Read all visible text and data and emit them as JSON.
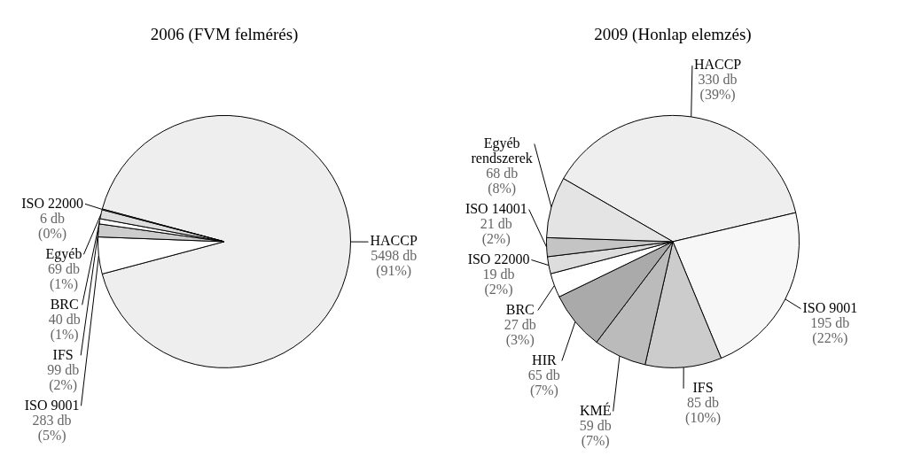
{
  "chart_data": [
    {
      "type": "pie",
      "title": "2006 (FVM felmérés)",
      "categories": [
        "HACCP",
        "ISO 9001",
        "IFS",
        "BRC",
        "Egyéb",
        "ISO 22000"
      ],
      "values": [
        5498,
        283,
        99,
        40,
        69,
        6
      ],
      "value_labels": [
        "5498 db (91%)",
        "283 db (5%)",
        "99 db (2%)",
        "40 db (1%)",
        "69 db (1%)",
        "6 db (0%)"
      ],
      "colors": [
        "#eeeeee",
        "#ffffff",
        "#cccccc",
        "#ffffff",
        "#dddddd",
        "#ffffff"
      ]
    },
    {
      "type": "pie",
      "title": "2009 (Honlap elemzés)",
      "categories": [
        "HACCP",
        "ISO 9001",
        "IFS",
        "KMÉ",
        "HIR",
        "BRC",
        "ISO 22000",
        "ISO 14001",
        "Egyéb rendszerek"
      ],
      "values": [
        330,
        195,
        85,
        59,
        65,
        27,
        19,
        21,
        68
      ],
      "value_labels": [
        "330 db (39%)",
        "195 db (22%)",
        "85 db (10%)",
        "59 db (7%)",
        "65 db (7%)",
        "27 db (3%)",
        "19 db (2%)",
        "21 db (2%)",
        "68 db (8%)"
      ],
      "colors": [
        "#eeeeee",
        "#f7f7f7",
        "#cccccc",
        "#bbbbbb",
        "#aaaaaa",
        "#ffffff",
        "#dddddd",
        "#c4c4c4",
        "#e4e4e4"
      ]
    }
  ]
}
